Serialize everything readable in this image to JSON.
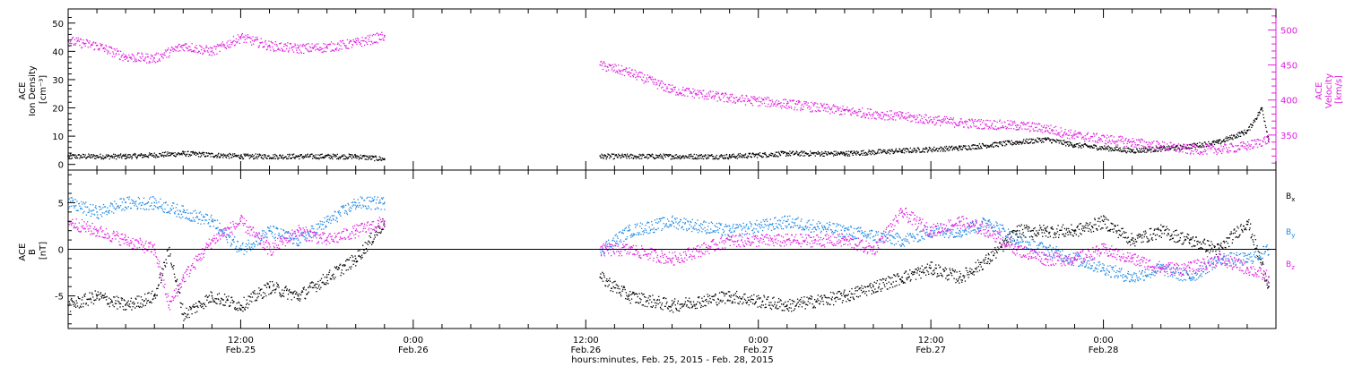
{
  "colors": {
    "black": "#000000",
    "magenta": "#e020e0",
    "blue": "#1e88e5",
    "axis": "#000000"
  },
  "chart_data": [
    {
      "type": "scatter",
      "panel": "top",
      "ylabel": [
        "ACE",
        "Ion Density",
        "[cm⁻³]"
      ],
      "y2label": [
        "ACE",
        "Velocity",
        "[km/s]"
      ],
      "ylim": [
        -2,
        55
      ],
      "yticks": [
        0,
        10,
        20,
        30,
        40,
        50
      ],
      "y2lim": [
        300,
        530
      ],
      "y2ticks": [
        350,
        400,
        450,
        500
      ],
      "xlim_hours": [
        0,
        84
      ],
      "series": [
        {
          "name": "",
          "axis": "left",
          "color": "#000000",
          "points": [
            [
              0,
              3
            ],
            [
              4,
              3
            ],
            [
              8,
              4
            ],
            [
              12,
              3
            ],
            [
              16,
              3
            ],
            [
              20,
              3
            ],
            [
              22,
              2
            ],
            [
              37,
              3
            ],
            [
              42,
              3
            ],
            [
              46,
              3
            ],
            [
              50,
              4
            ],
            [
              54,
              4
            ],
            [
              58,
              5
            ],
            [
              62,
              6
            ],
            [
              66,
              8
            ],
            [
              68,
              9
            ],
            [
              70,
              7
            ],
            [
              74,
              5
            ],
            [
              77,
              6
            ],
            [
              80,
              8
            ],
            [
              82,
              12
            ],
            [
              83,
              20
            ],
            [
              83.5,
              8
            ]
          ]
        },
        {
          "name": "",
          "axis": "right",
          "color": "#e020e0",
          "points": [
            [
              0,
              485
            ],
            [
              2,
              478
            ],
            [
              4,
              462
            ],
            [
              6,
              460
            ],
            [
              8,
              478
            ],
            [
              10,
              470
            ],
            [
              12,
              490
            ],
            [
              14,
              478
            ],
            [
              16,
              474
            ],
            [
              18,
              476
            ],
            [
              20,
              482
            ],
            [
              22,
              492
            ],
            [
              37,
              450
            ],
            [
              39,
              440
            ],
            [
              42,
              415
            ],
            [
              46,
              403
            ],
            [
              50,
              395
            ],
            [
              54,
              385
            ],
            [
              58,
              377
            ],
            [
              62,
              368
            ],
            [
              66,
              364
            ],
            [
              68,
              360
            ],
            [
              70,
              350
            ],
            [
              74,
              340
            ],
            [
              76,
              335
            ],
            [
              78,
              330
            ],
            [
              80,
              330
            ],
            [
              82,
              335
            ],
            [
              83.5,
              345
            ]
          ]
        }
      ]
    },
    {
      "type": "scatter",
      "panel": "bottom",
      "ylabel": [
        "ACE",
        "B",
        "[nT]"
      ],
      "ylim": [
        -8.5,
        8.5
      ],
      "yticks": [
        -5,
        0,
        5
      ],
      "xlim_hours": [
        0,
        84
      ],
      "legend": [
        "Bx",
        "By",
        "Bz"
      ],
      "series": [
        {
          "name": "Bx",
          "color": "#000000",
          "points": [
            [
              0,
              -6
            ],
            [
              2,
              -5
            ],
            [
              4,
              -6
            ],
            [
              6,
              -5
            ],
            [
              7,
              0
            ],
            [
              8,
              -7
            ],
            [
              10,
              -5
            ],
            [
              12,
              -6
            ],
            [
              14,
              -4
            ],
            [
              16,
              -5
            ],
            [
              18,
              -3
            ],
            [
              20,
              -1
            ],
            [
              22,
              3
            ],
            [
              37,
              -3
            ],
            [
              39,
              -5
            ],
            [
              42,
              -6
            ],
            [
              46,
              -5
            ],
            [
              50,
              -6
            ],
            [
              54,
              -5
            ],
            [
              56,
              -4
            ],
            [
              58,
              -3
            ],
            [
              60,
              -2
            ],
            [
              62,
              -3
            ],
            [
              64,
              -1
            ],
            [
              66,
              2
            ],
            [
              68,
              2
            ],
            [
              70,
              2
            ],
            [
              72,
              3
            ],
            [
              74,
              1
            ],
            [
              76,
              2
            ],
            [
              78,
              1
            ],
            [
              80,
              0
            ],
            [
              82,
              3
            ],
            [
              83.5,
              -4
            ]
          ]
        },
        {
          "name": "By",
          "color": "#1e88e5",
          "points": [
            [
              0,
              5
            ],
            [
              2,
              4
            ],
            [
              4,
              5
            ],
            [
              6,
              5
            ],
            [
              8,
              4
            ],
            [
              10,
              3
            ],
            [
              12,
              0
            ],
            [
              14,
              2
            ],
            [
              16,
              1
            ],
            [
              18,
              3
            ],
            [
              20,
              5
            ],
            [
              22,
              5
            ],
            [
              37,
              0
            ],
            [
              39,
              2
            ],
            [
              42,
              3
            ],
            [
              46,
              2
            ],
            [
              50,
              3
            ],
            [
              54,
              2
            ],
            [
              58,
              1
            ],
            [
              60,
              2
            ],
            [
              62,
              2
            ],
            [
              64,
              3
            ],
            [
              66,
              1
            ],
            [
              68,
              0
            ],
            [
              70,
              -1
            ],
            [
              72,
              -2
            ],
            [
              74,
              -3
            ],
            [
              76,
              -2
            ],
            [
              78,
              -3
            ],
            [
              80,
              -1
            ],
            [
              82,
              -1
            ],
            [
              83.5,
              0
            ]
          ]
        },
        {
          "name": "Bz",
          "color": "#e020e0",
          "points": [
            [
              0,
              3
            ],
            [
              2,
              2
            ],
            [
              4,
              1
            ],
            [
              6,
              0
            ],
            [
              7,
              -6
            ],
            [
              8,
              -3
            ],
            [
              10,
              1
            ],
            [
              12,
              3
            ],
            [
              14,
              0
            ],
            [
              16,
              2
            ],
            [
              18,
              1
            ],
            [
              20,
              2
            ],
            [
              22,
              3
            ],
            [
              37,
              0
            ],
            [
              39,
              0
            ],
            [
              42,
              -1
            ],
            [
              46,
              1
            ],
            [
              50,
              1
            ],
            [
              54,
              1
            ],
            [
              56,
              0
            ],
            [
              58,
              4
            ],
            [
              60,
              2
            ],
            [
              62,
              3
            ],
            [
              64,
              2
            ],
            [
              66,
              0
            ],
            [
              68,
              -1
            ],
            [
              70,
              -1
            ],
            [
              72,
              0
            ],
            [
              74,
              -1
            ],
            [
              76,
              -2
            ],
            [
              78,
              -2
            ],
            [
              80,
              -1
            ],
            [
              82,
              -2
            ],
            [
              83.5,
              -3
            ]
          ]
        }
      ]
    }
  ],
  "x_axis": {
    "ticks": [
      {
        "h": 12,
        "time": "12:00",
        "date": "Feb.25"
      },
      {
        "h": 24,
        "time": "0:00",
        "date": "Feb.26"
      },
      {
        "h": 36,
        "time": "12:00",
        "date": "Feb.26"
      },
      {
        "h": 48,
        "time": "0:00",
        "date": "Feb.27"
      },
      {
        "h": 60,
        "time": "12:00",
        "date": "Feb.27"
      },
      {
        "h": 72,
        "time": "0:00",
        "date": "Feb.28"
      }
    ],
    "minor_step_hours": 2,
    "label": "hours:minutes, Feb. 25, 2015 - Feb. 28, 2015"
  }
}
